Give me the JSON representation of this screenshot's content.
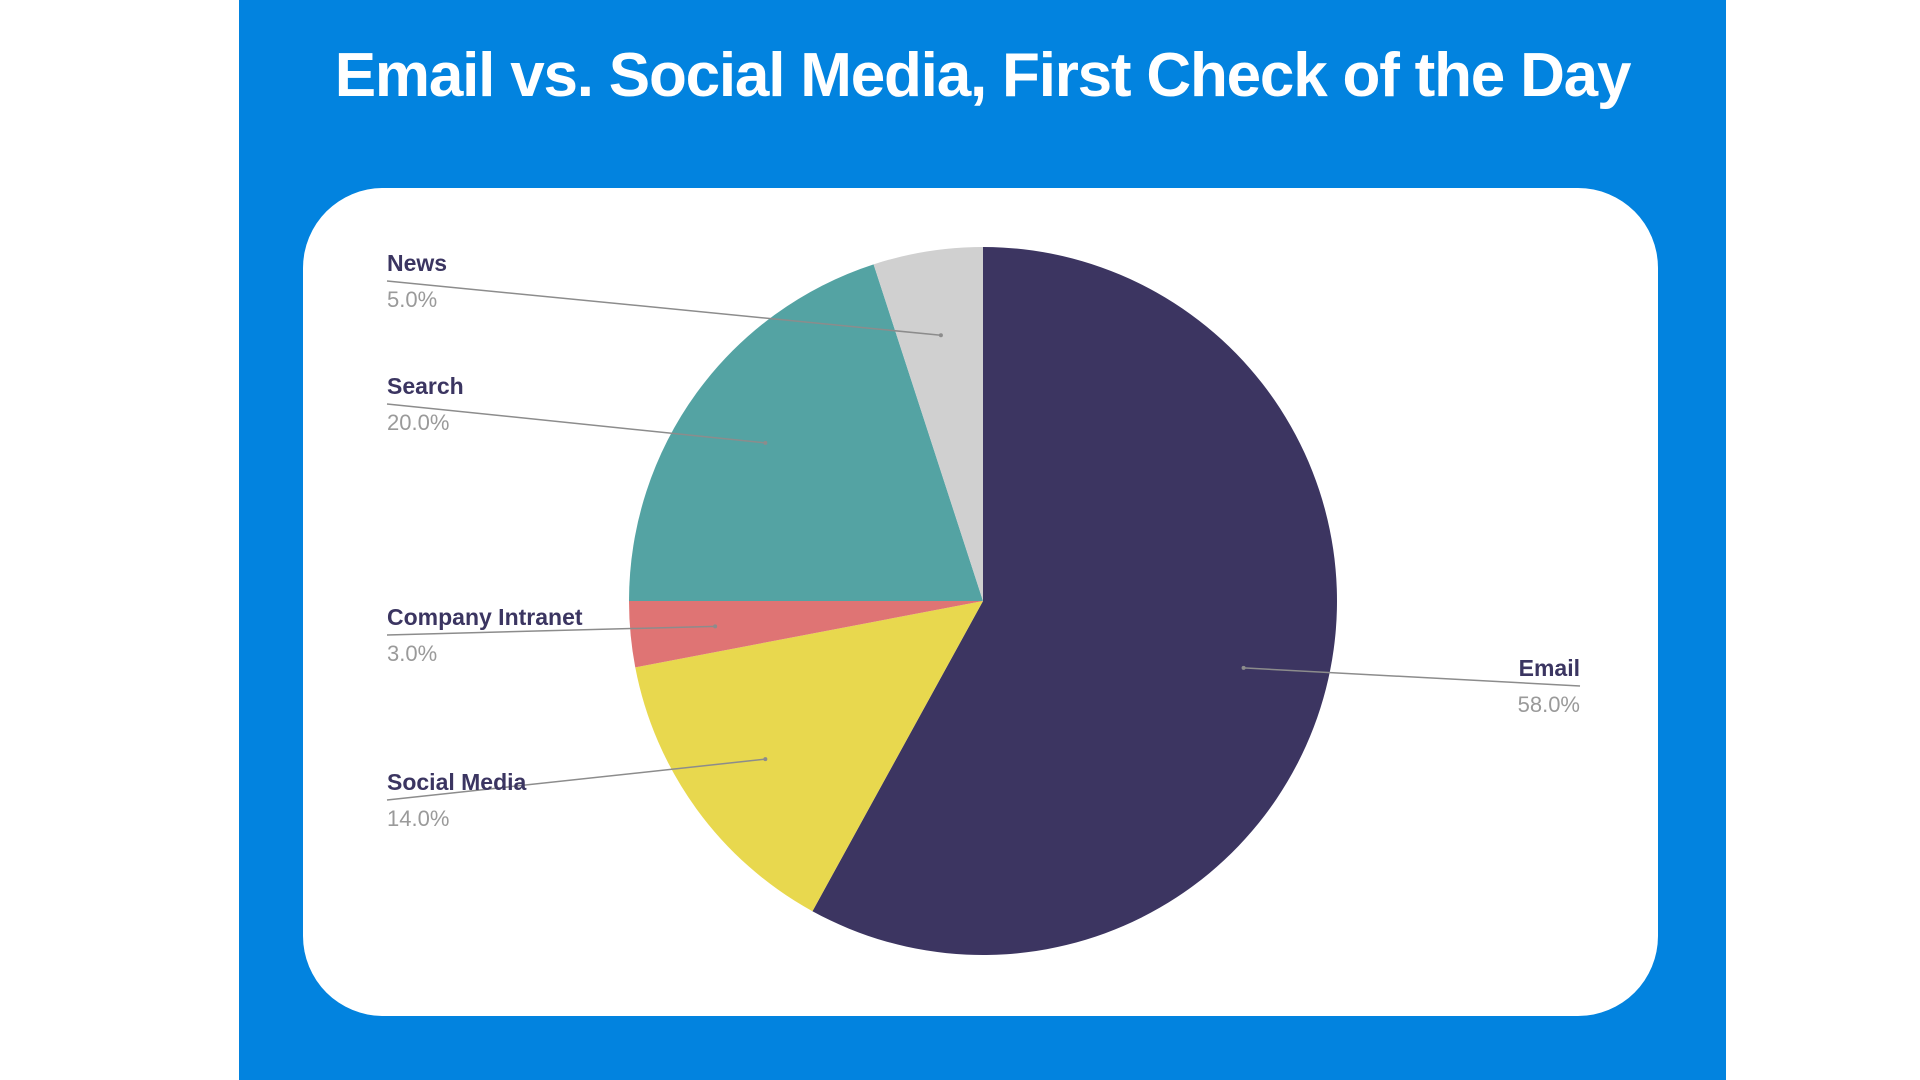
{
  "chart_data": {
    "type": "pie",
    "title": "Email vs. Social Media, First Check of the Day",
    "start_angle_deg": 0,
    "direction": "clockwise",
    "slices": [
      {
        "label": "Email",
        "value": 58.0,
        "value_label": "58.0%",
        "color": "#3c3561"
      },
      {
        "label": "Social Media",
        "value": 14.0,
        "value_label": "14.0%",
        "color": "#e8d84e"
      },
      {
        "label": "Company Intranet",
        "value": 3.0,
        "value_label": "3.0%",
        "color": "#df7474"
      },
      {
        "label": "Search",
        "value": 20.0,
        "value_label": "20.0%",
        "color": "#54a3a3"
      },
      {
        "label": "News",
        "value": 5.0,
        "value_label": "5.0%",
        "color": "#d0d0d0"
      }
    ]
  },
  "colors": {
    "background": "#0283df",
    "card": "#ffffff",
    "title": "#ffffff",
    "label_name": "#3b3561",
    "label_value": "#9a9a9a",
    "leader_line": "#8c8c8c"
  }
}
